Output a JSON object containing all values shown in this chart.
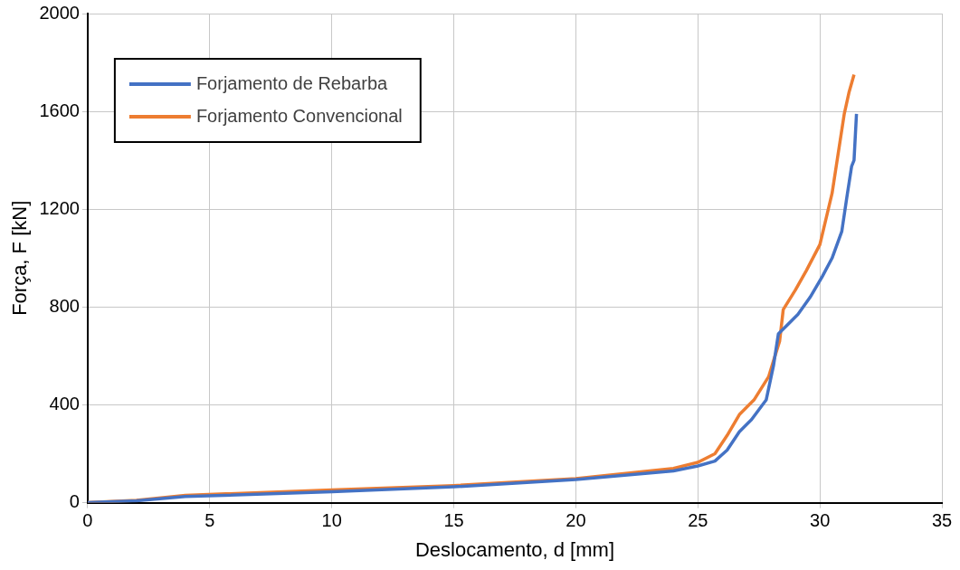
{
  "chart_data": {
    "type": "line",
    "xlabel": "Deslocamento, d [mm]",
    "ylabel": "Força, F [kN]",
    "xlim": [
      0,
      35
    ],
    "xticks": [
      0,
      5,
      10,
      15,
      20,
      25,
      30,
      35
    ],
    "ylim": [
      0,
      2000
    ],
    "yticks": [
      0,
      400,
      800,
      1200,
      1600,
      2000
    ],
    "grid": true,
    "legend": "top left",
    "marker": "none",
    "line_style": "solid",
    "series": [
      {
        "name": "Forjamento de Rebarba",
        "color": "#4472c4",
        "x": [
          0,
          2,
          4,
          10,
          15,
          20,
          24,
          25,
          25.7,
          26.2,
          26.7,
          27.2,
          27.8,
          28.1,
          28.3,
          28.6,
          29.1,
          29.6,
          30.1,
          30.5,
          30.9,
          31.1,
          31.3,
          31.4,
          31.5
        ],
        "values": [
          0,
          8,
          25,
          45,
          65,
          95,
          130,
          150,
          170,
          215,
          290,
          340,
          420,
          560,
          690,
          720,
          770,
          840,
          925,
          1000,
          1110,
          1245,
          1375,
          1400,
          1590
        ]
      },
      {
        "name": "Forjamento Convencional",
        "color": "#ed7d31",
        "x": [
          0,
          2,
          4,
          10,
          15,
          20,
          24,
          25,
          25.7,
          26.2,
          26.7,
          27.3,
          27.9,
          28.1,
          28.35,
          28.5,
          29,
          29.45,
          30,
          30.5,
          31,
          31.2,
          31.4
        ],
        "values": [
          0,
          10,
          30,
          52,
          70,
          98,
          140,
          165,
          200,
          275,
          360,
          420,
          515,
          580,
          660,
          790,
          870,
          950,
          1055,
          1265,
          1590,
          1680,
          1750
        ]
      }
    ]
  }
}
